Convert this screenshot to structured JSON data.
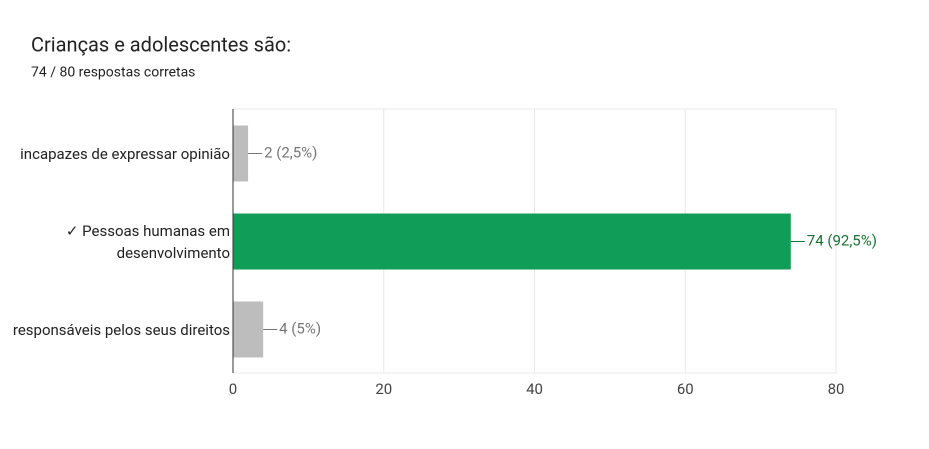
{
  "chart_data": {
    "type": "bar",
    "orientation": "horizontal",
    "title": "Crianças e adolescentes são:",
    "subtitle": "74 / 80 respostas corretas",
    "categories": [
      "incapazes de expressar opinião",
      "✓ Pessoas humanas em desenvolvimento",
      "responsáveis pelos seus direitos"
    ],
    "values": [
      2,
      74,
      4
    ],
    "value_labels": [
      "2 (2,5%)",
      "74 (92,5%)",
      "4 (5%)"
    ],
    "colors": [
      "#bdbdbd",
      "#0f9d58",
      "#bdbdbd"
    ],
    "label_colors": [
      "#757575",
      "#137333",
      "#757575"
    ],
    "xlim": [
      0,
      80
    ],
    "xticks": [
      0,
      20,
      40,
      60,
      80
    ],
    "grid": true
  }
}
